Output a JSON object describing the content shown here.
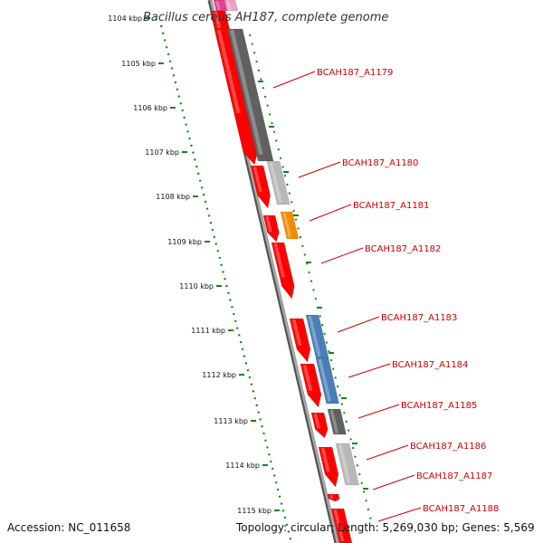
{
  "title": "Bacillus cereus AH187, complete genome",
  "footer": {
    "accession": "Accession: NC_011658",
    "summary": "Topology: circular; Length: 5,269,030 bp; Genes: 5,569"
  },
  "kbp_labels": [
    "1104 kbp",
    "1105 kbp",
    "1106 kbp",
    "1107 kbp",
    "1108 kbp",
    "1109 kbp",
    "1110 kbp",
    "1111 kbp",
    "1112 kbp",
    "1113 kbp",
    "1114 kbp",
    "1115 kbp"
  ],
  "genes": [
    {
      "label": "BCAH187_A1179"
    },
    {
      "label": "BCAH187_A1180"
    },
    {
      "label": "BCAH187_A1181"
    },
    {
      "label": "BCAH187_A1182"
    },
    {
      "label": "BCAH187_A1183"
    },
    {
      "label": "BCAH187_A1184"
    },
    {
      "label": "BCAH187_A1185"
    },
    {
      "label": "BCAH187_A1186"
    },
    {
      "label": "BCAH187_A1187"
    },
    {
      "label": "BCAH187_A1188"
    }
  ],
  "colors": {
    "cds": "#ff0000",
    "cds_dark": "#cc0000",
    "backbone": "#888888",
    "ruler": "#118811",
    "label": "#cc0000",
    "dark_gray": "#606060",
    "light_gray": "#b8b8b8",
    "orange": "#f08c00",
    "steel_blue": "#4a7fb6",
    "magenta": "#e0408c",
    "pink": "#f0a0c8"
  }
}
